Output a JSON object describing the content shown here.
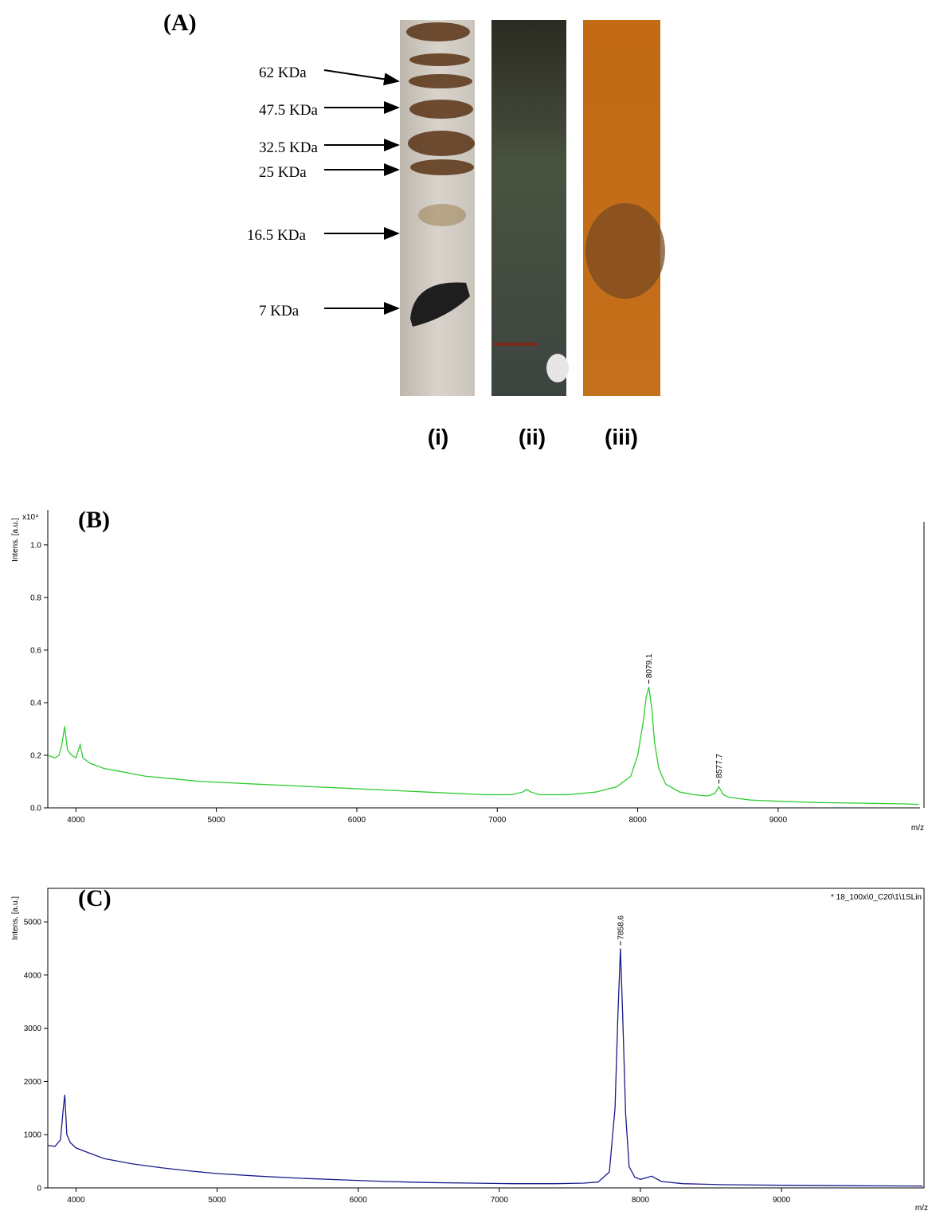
{
  "panel_a": {
    "label": "(A)",
    "markers": [
      "62  KDa",
      "47.5 KDa",
      "32.5 KDa",
      "25 KDa",
      "16.5 KDa",
      "7 KDa"
    ],
    "lanes": [
      "(i)",
      "(ii)",
      "(iii)"
    ]
  },
  "chart_data": [
    {
      "type": "line",
      "title": "(B)",
      "ylabel": "Intens. [a.u.]",
      "ylabel_scale": "x10⁴",
      "xlabel": "m/z",
      "xlim": [
        3800,
        10010
      ],
      "ylim": [
        0,
        1.133
      ],
      "xticks": [
        4000,
        5000,
        6000,
        7000,
        8000,
        9000
      ],
      "yticks": [
        {
          "value": 0,
          "label": "0.0"
        },
        0.2,
        0.4,
        0.6,
        0.8,
        {
          "value": 1,
          "label": "1.0"
        }
      ],
      "series": [
        {
          "color": "#2ecc2e",
          "x": [
            3800,
            3850,
            3880,
            3900,
            3920,
            3940,
            3970,
            4000,
            4030,
            4050,
            4100,
            4200,
            4300,
            4400,
            4500,
            4700,
            4900,
            5100,
            5300,
            5500,
            5700,
            5900,
            6100,
            6300,
            6500,
            6700,
            6900,
            7100,
            7180,
            7210,
            7240,
            7300,
            7500,
            7700,
            7850,
            7950,
            8000,
            8040,
            8060,
            8079.1,
            8100,
            8120,
            8150,
            8200,
            8300,
            8400,
            8500,
            8550,
            8577.7,
            8610,
            8650,
            8800,
            9000,
            9300,
            9600,
            9900,
            10000
          ],
          "values": [
            0.2,
            0.19,
            0.2,
            0.24,
            0.31,
            0.22,
            0.2,
            0.19,
            0.24,
            0.19,
            0.17,
            0.15,
            0.14,
            0.13,
            0.12,
            0.11,
            0.1,
            0.095,
            0.09,
            0.085,
            0.08,
            0.075,
            0.07,
            0.065,
            0.06,
            0.055,
            0.05,
            0.05,
            0.06,
            0.07,
            0.06,
            0.05,
            0.05,
            0.06,
            0.08,
            0.12,
            0.2,
            0.33,
            0.42,
            0.46,
            0.38,
            0.25,
            0.15,
            0.09,
            0.06,
            0.05,
            0.045,
            0.055,
            0.08,
            0.05,
            0.04,
            0.03,
            0.025,
            0.02,
            0.018,
            0.015,
            0.013
          ]
        }
      ],
      "annotations": [
        {
          "x": 8079.1,
          "y": 0.46
        },
        {
          "x": 8577.7,
          "y": 0.08
        }
      ]
    },
    {
      "type": "line",
      "title": "(C)",
      "ylabel": "Intens. [a.u.]",
      "xlabel": "m/z",
      "legend": "* 18_100x\\0_C20\\1\\1SLin",
      "xlim": [
        3800,
        10010
      ],
      "ylim": [
        0,
        5630
      ],
      "xticks": [
        4000,
        5000,
        6000,
        7000,
        8000,
        9000
      ],
      "yticks": [
        0,
        1000,
        2000,
        3000,
        4000,
        5000
      ],
      "series": [
        {
          "color": "#1a1a8c",
          "x": [
            3800,
            3850,
            3890,
            3910,
            3920,
            3935,
            3960,
            4000,
            4100,
            4200,
            4400,
            4600,
            4800,
            5000,
            5300,
            5600,
            5900,
            6200,
            6500,
            6800,
            7100,
            7400,
            7600,
            7700,
            7780,
            7820,
            7840,
            7858.6,
            7875,
            7895,
            7920,
            7960,
            8000,
            8080,
            8150,
            8300,
            8600,
            9000,
            9500,
            10000
          ],
          "values": [
            800,
            780,
            900,
            1500,
            1750,
            1000,
            850,
            750,
            650,
            550,
            450,
            380,
            320,
            270,
            220,
            180,
            150,
            120,
            100,
            90,
            80,
            80,
            90,
            110,
            300,
            1500,
            3200,
            4500,
            3200,
            1400,
            400,
            200,
            160,
            220,
            120,
            80,
            60,
            50,
            40,
            35
          ]
        }
      ],
      "annotations": [
        {
          "x": 7858.6,
          "y": 4500
        }
      ]
    }
  ]
}
